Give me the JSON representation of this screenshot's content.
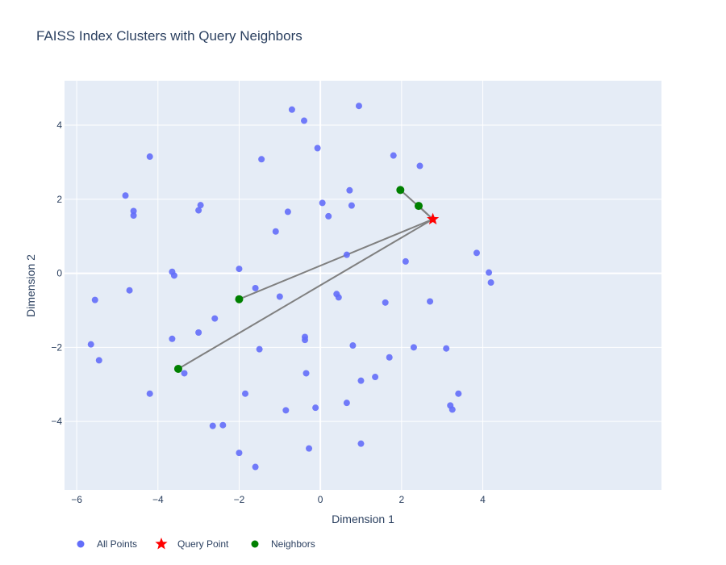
{
  "chart_data": {
    "type": "scatter",
    "title": "FAISS Index Clusters with Query Neighbors",
    "xlabel": "Dimension 1",
    "ylabel": "Dimension 2",
    "xlim": [
      -6.3,
      8.4
    ],
    "ylim": [
      -5.85,
      5.2
    ],
    "x_ticks": [
      -6,
      -4,
      -2,
      0,
      2,
      4
    ],
    "y_ticks": [
      -4,
      -2,
      0,
      2,
      4
    ],
    "grid": true,
    "legend_placement": "bottom-left, horizontal",
    "colors": {
      "plot_bg": "#e5ecf6",
      "grid": "#ffffff",
      "all_points": "#636efa",
      "query": "#ff0000",
      "neighbors": "#008000",
      "lines": "#808080",
      "text": "#2a3f5f"
    },
    "series": [
      {
        "name": "All Points",
        "marker": "circle",
        "x": [
          -0.7,
          -0.4,
          0.95,
          -4.2,
          -1.45,
          -0.07,
          1.8,
          2.45,
          -4.8,
          -4.6,
          -4.6,
          -2.95,
          -3.0,
          -0.8,
          0.05,
          0.2,
          0.72,
          0.77,
          -1.1,
          0.65,
          2.1,
          3.85,
          4.15,
          4.2,
          -3.65,
          -3.6,
          -2.0,
          -1.6,
          -1.0,
          0.4,
          0.45,
          1.6,
          2.7,
          -4.7,
          -5.55,
          -3.0,
          -2.6,
          -3.65,
          -5.65,
          -5.45,
          -0.38,
          -0.38,
          0.8,
          -1.5,
          1.7,
          2.3,
          3.1,
          -3.35,
          -0.35,
          1.0,
          1.35,
          -4.2,
          -1.85,
          0.65,
          -0.85,
          -0.12,
          3.2,
          3.25,
          3.4,
          -2.65,
          -2.4,
          -2.0,
          -0.28,
          1.0,
          -1.6
        ],
        "y": [
          4.42,
          4.12,
          4.52,
          3.15,
          3.08,
          3.38,
          3.18,
          2.9,
          2.1,
          1.68,
          1.56,
          1.84,
          1.7,
          1.66,
          1.9,
          1.54,
          2.24,
          1.83,
          1.13,
          0.5,
          0.32,
          0.55,
          0.02,
          -0.25,
          0.04,
          -0.06,
          0.12,
          -0.4,
          -0.63,
          -0.56,
          -0.65,
          -0.79,
          -0.76,
          -0.46,
          -0.72,
          -1.6,
          -1.22,
          -1.77,
          -1.92,
          -2.35,
          -1.72,
          -1.8,
          -1.95,
          -2.05,
          -2.27,
          -2.0,
          -2.03,
          -2.7,
          -2.7,
          -2.9,
          -2.8,
          -3.25,
          -3.25,
          -3.5,
          -3.7,
          -3.63,
          -3.57,
          -3.68,
          -3.25,
          -4.12,
          -4.1,
          -4.85,
          -4.73,
          -4.6,
          -5.23
        ]
      },
      {
        "name": "Query Point",
        "marker": "star",
        "x": [
          2.77
        ],
        "y": [
          1.46
        ]
      },
      {
        "name": "Neighbors",
        "marker": "circle",
        "x": [
          2.42,
          1.97,
          -2.0,
          -3.5
        ],
        "y": [
          1.82,
          2.25,
          -0.7,
          -2.58
        ]
      }
    ]
  }
}
